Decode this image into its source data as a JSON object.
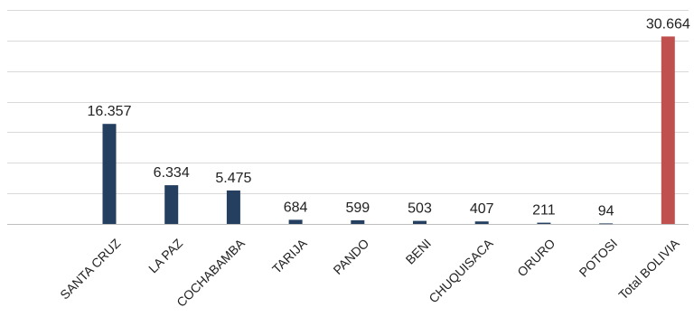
{
  "chart_data": {
    "type": "bar",
    "categories": [
      "SANTA CRUZ",
      "LA PAZ",
      "COCHABAMBA",
      "TARIJA",
      "PANDO",
      "BENI",
      "CHUQUISACA",
      "ORURO",
      "POTOSI",
      "Total BOLIVIA"
    ],
    "values": [
      16357,
      6334,
      5475,
      684,
      599,
      503,
      407,
      211,
      94,
      30664
    ],
    "data_labels": [
      "16.357",
      "6.334",
      "5.475",
      "684",
      "599",
      "503",
      "407",
      "211",
      "94",
      "30.664"
    ],
    "ylim": [
      0,
      35000
    ],
    "y_grid_step": 5000,
    "grid": true,
    "colors": {
      "bar": "#243F60",
      "total_bar": "#C0504D",
      "grid": "#D9D9D9",
      "axis": "#BFBFBF",
      "text": "#222222"
    }
  }
}
